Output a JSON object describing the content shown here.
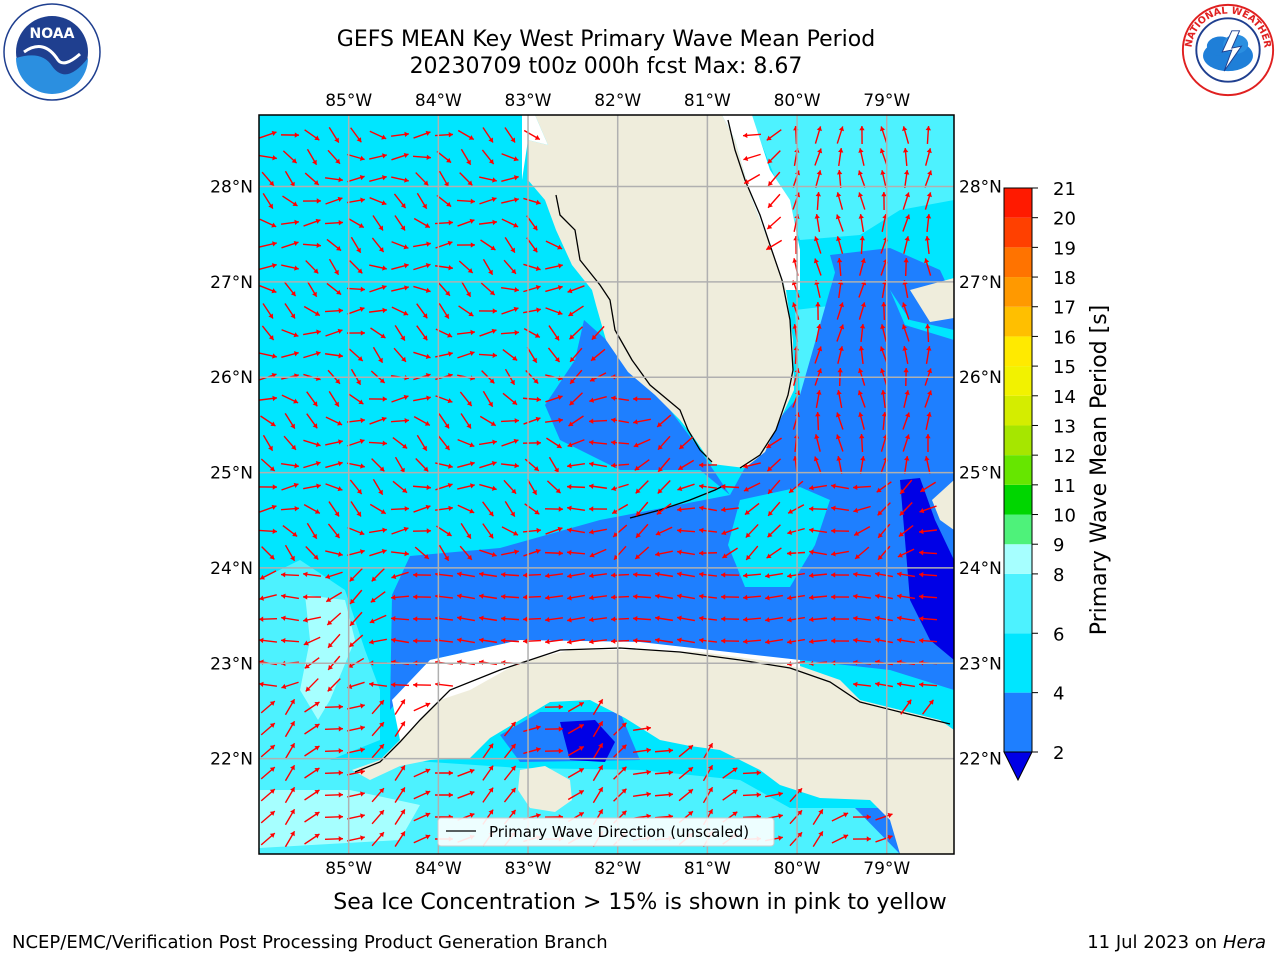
{
  "header": {
    "title_line1": "GEFS MEAN Key West Primary Wave Mean Period",
    "title_line2": "20230709 t00z 000h fcst   Max: 8.67"
  },
  "logos": {
    "left": {
      "icon": "noaa-logo-icon",
      "text": "NOAA",
      "ring_text": "NATIONAL OCEANIC AND ATMOSPHERIC ADMINISTRATION · U.S. DEPARTMENT OF COMMERCE"
    },
    "right": {
      "icon": "nws-logo-icon",
      "ring_text": "NATIONAL WEATHER SERVICE"
    }
  },
  "chart_data": {
    "type": "filled-contour-map",
    "map_region": {
      "lon_range": [
        -86.0,
        -78.25
      ],
      "lat_range": [
        21.0,
        28.75
      ]
    },
    "grid": true,
    "lon_ticks": [
      {
        "value": -85,
        "label": "85°W"
      },
      {
        "value": -84,
        "label": "84°W"
      },
      {
        "value": -83,
        "label": "83°W"
      },
      {
        "value": -82,
        "label": "82°W"
      },
      {
        "value": -81,
        "label": "81°W"
      },
      {
        "value": -80,
        "label": "80°W"
      },
      {
        "value": -79,
        "label": "79°W"
      }
    ],
    "lat_ticks": [
      {
        "value": 28,
        "label": "28°N"
      },
      {
        "value": 27,
        "label": "27°N"
      },
      {
        "value": 26,
        "label": "26°N"
      },
      {
        "value": 25,
        "label": "25°N"
      },
      {
        "value": 24,
        "label": "24°N"
      },
      {
        "value": 23,
        "label": "23°N"
      },
      {
        "value": 22,
        "label": "22°N"
      }
    ],
    "colorbar": {
      "label": "Primary Wave Mean Period [s]",
      "extend": "min",
      "levels": [
        2,
        3,
        4,
        5,
        6,
        7,
        8,
        9,
        10,
        11,
        12,
        13,
        14,
        15,
        16,
        17,
        18,
        19,
        20,
        21
      ],
      "tick_labels": [
        "2",
        "4",
        "6",
        "8",
        "9",
        "10",
        "11",
        "12",
        "13",
        "14",
        "15",
        "16",
        "17",
        "18",
        "19",
        "20",
        "21"
      ],
      "tick_values": [
        2,
        4,
        6,
        8,
        9,
        10,
        11,
        12,
        13,
        14,
        15,
        16,
        17,
        18,
        19,
        20,
        21
      ],
      "bins": [
        {
          "from": 2,
          "to": 4,
          "color": "#1e7fff"
        },
        {
          "from": 4,
          "to": 6,
          "color": "#00e6ff"
        },
        {
          "from": 6,
          "to": 8,
          "color": "#4df2ff"
        },
        {
          "from": 8,
          "to": 9,
          "color": "#a6ffff"
        },
        {
          "from": 9,
          "to": 10,
          "color": "#4ef27a"
        },
        {
          "from": 10,
          "to": 11,
          "color": "#00d600"
        },
        {
          "from": 11,
          "to": 12,
          "color": "#66e600"
        },
        {
          "from": 12,
          "to": 13,
          "color": "#a6e600"
        },
        {
          "from": 13,
          "to": 14,
          "color": "#d4ed00"
        },
        {
          "from": 14,
          "to": 15,
          "color": "#f2f200"
        },
        {
          "from": 15,
          "to": 16,
          "color": "#ffea00"
        },
        {
          "from": 16,
          "to": 17,
          "color": "#ffbf00"
        },
        {
          "from": 17,
          "to": 18,
          "color": "#ff9900"
        },
        {
          "from": 18,
          "to": 19,
          "color": "#ff7300"
        },
        {
          "from": 19,
          "to": 20,
          "color": "#ff4000"
        },
        {
          "from": 20,
          "to": 21,
          "color": "#ff1a00"
        }
      ],
      "under_color": "#0000e6"
    },
    "legend": {
      "label": "Primary Wave Direction (unscaled)",
      "placement": "bottom-center"
    },
    "max_value": 8.67,
    "colors": {
      "land": "#efeddc",
      "arrows": "#ff0000",
      "grid": "#b0b0b0",
      "coast": "#000000"
    }
  },
  "footnote": "Sea Ice Concentration > 15% is shown in pink to yellow",
  "footer": {
    "left": "NCEP/EMC/Verification Post Processing Product Generation Branch",
    "right_date": "11 Jul 2023 on ",
    "right_host": "Hera"
  }
}
